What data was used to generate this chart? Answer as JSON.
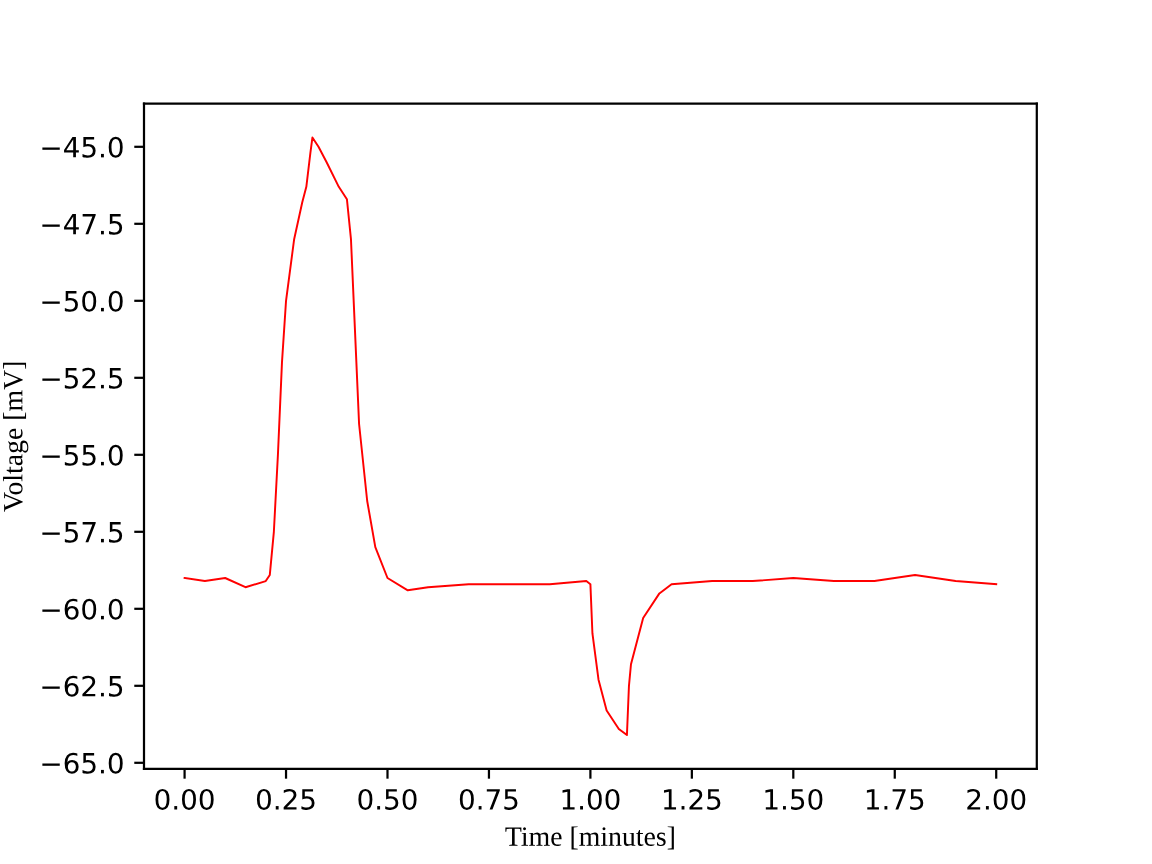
{
  "chart_data": {
    "type": "line",
    "xlabel": "Time [minutes]",
    "ylabel": "Voltage [mV]",
    "xlim": [
      -0.1,
      2.1
    ],
    "xticks": [
      {
        "value": 0,
        "label": "0.00"
      },
      0.25,
      {
        "value": 0.5,
        "label": "0.50"
      },
      0.75,
      {
        "value": 1,
        "label": "1.00"
      },
      1.25,
      {
        "value": 1.5,
        "label": "1.50"
      },
      1.75,
      {
        "value": 2,
        "label": "2.00"
      }
    ],
    "ylim": [
      -65.2,
      -43.6
    ],
    "yticks": [
      {
        "value": -45,
        "label": "−45.0"
      },
      {
        "value": -47.5,
        "label": "−47.5"
      },
      {
        "value": -50,
        "label": "−50.0"
      },
      {
        "value": -52.5,
        "label": "−52.5"
      },
      {
        "value": -55,
        "label": "−55.0"
      },
      {
        "value": -57.5,
        "label": "−57.5"
      },
      {
        "value": -60,
        "label": "−60.0"
      },
      {
        "value": -62.5,
        "label": "−62.5"
      },
      {
        "value": -65,
        "label": "−65.0"
      }
    ],
    "grid": false,
    "legend": false,
    "marker": "none",
    "line_style": "solid",
    "series": [
      {
        "color": "#ff0000",
        "x": [
          0,
          0.05,
          0.1,
          0.15,
          0.2,
          0.21,
          0.22,
          0.23,
          0.24,
          0.25,
          0.27,
          0.29,
          0.3,
          0.31,
          0.315,
          0.33,
          0.35,
          0.38,
          0.4,
          0.41,
          0.42,
          0.43,
          0.45,
          0.47,
          0.5,
          0.55,
          0.6,
          0.7,
          0.8,
          0.9,
          0.99,
          1.0,
          1.005,
          1.02,
          1.04,
          1.07,
          1.09,
          1.095,
          1.1,
          1.13,
          1.17,
          1.2,
          1.3,
          1.4,
          1.5,
          1.6,
          1.7,
          1.8,
          1.9,
          2.0
        ],
        "values": [
          -59.0,
          -59.1,
          -59.0,
          -59.3,
          -59.1,
          -58.9,
          -57.5,
          -55.0,
          -52.0,
          -50.0,
          -48.0,
          -46.8,
          -46.3,
          -45.2,
          -44.7,
          -45.0,
          -45.5,
          -46.3,
          -46.7,
          -48.0,
          -51.0,
          -54.0,
          -56.5,
          -58.0,
          -59.0,
          -59.4,
          -59.3,
          -59.2,
          -59.2,
          -59.2,
          -59.1,
          -59.2,
          -60.8,
          -62.3,
          -63.3,
          -63.9,
          -64.1,
          -62.5,
          -61.8,
          -60.3,
          -59.5,
          -59.2,
          -59.1,
          -59.1,
          -59.0,
          -59.1,
          -59.1,
          -58.9,
          -59.1,
          -59.2
        ]
      }
    ]
  }
}
